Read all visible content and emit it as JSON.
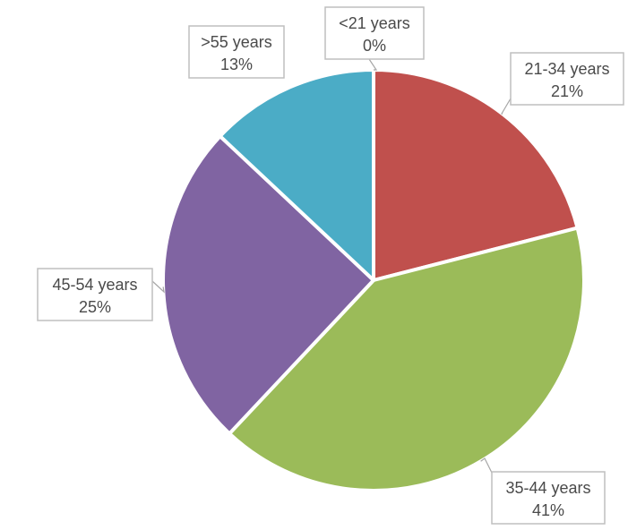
{
  "chart_data": {
    "type": "pie",
    "title": "",
    "legend": "none",
    "slices": [
      {
        "name": "<21 years",
        "value": 0,
        "label_value": "0%",
        "color": "#4f81bd"
      },
      {
        "name": "21-34 years",
        "value": 21,
        "label_value": "21%",
        "color": "#c0504d"
      },
      {
        "name": "35-44 years",
        "value": 41,
        "label_value": "41%",
        "color": "#9bbb59"
      },
      {
        "name": "45-54 years",
        "value": 25,
        "label_value": "25%",
        "color": "#8064a2"
      },
      {
        "name": ">55 years",
        "value": 13,
        "label_value": "13%",
        "color": "#4bacc6"
      }
    ]
  }
}
